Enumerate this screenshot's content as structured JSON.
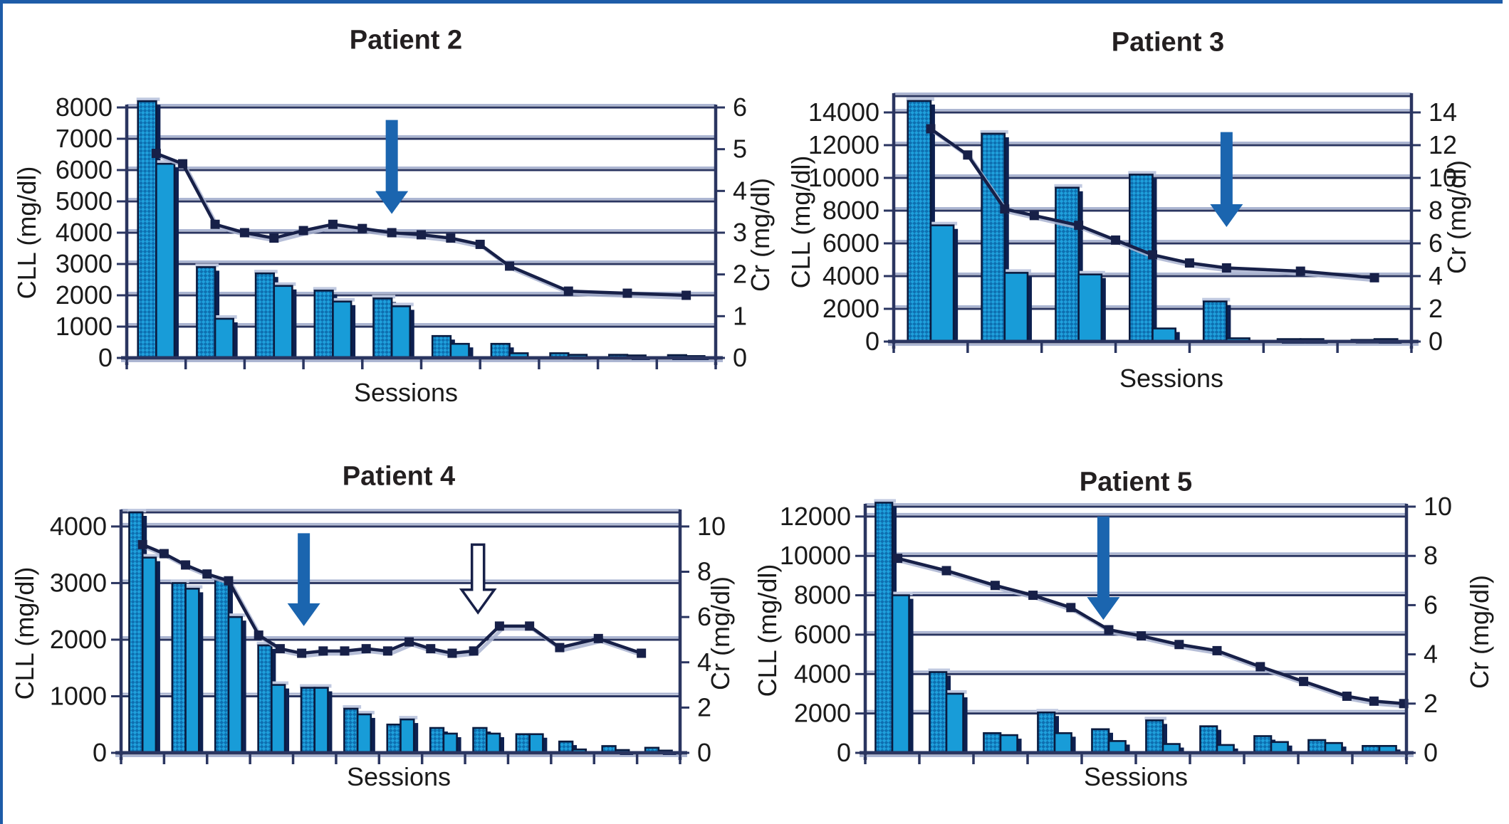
{
  "palette": {
    "bar_solid": "#189CD8",
    "bar_hatch_light": "#1FA0DC",
    "bar_hatch_dark": "#0E6FB0",
    "bar_outline": "#0A1B3F",
    "bar_shadow": "#0D2050",
    "bar_highlight": "#C0C9E0",
    "grid_navy": "#2A3560",
    "grid_light": "#ACB6D2",
    "line_ink": "#172048",
    "line_shadow": "#A9B3D0",
    "arrow_blue": "#1B65AF",
    "arrow_outline_fill": "#FFFFFF",
    "frame_blue": "#1E5CA8",
    "text": "#1A1A1A"
  },
  "chart_data": [
    {
      "type": "bar",
      "subtype": "combo-bar-line",
      "title": "Patient 2",
      "xlabel": "Sessions",
      "ylabel_left": "CLL (mg/dl)",
      "ylabel_right": "Cr (mg/dl)",
      "left_axis": {
        "ticks": [
          0,
          1000,
          2000,
          3000,
          4000,
          5000,
          6000,
          7000,
          8000
        ],
        "top_value": 8000
      },
      "right_axis": {
        "ticks": [
          0,
          1,
          2,
          3,
          4,
          5,
          6
        ]
      },
      "cll_per_cr": 1333.33,
      "bars_hatched": [
        8200,
        2900,
        2700,
        2150,
        1900,
        700,
        450,
        150,
        100,
        90
      ],
      "bars_solid": [
        6200,
        1250,
        2300,
        1800,
        1650,
        450,
        150,
        100,
        80,
        60
      ],
      "line_cr": [
        [
          1,
          4.9
        ],
        [
          1.45,
          4.65
        ],
        [
          2,
          3.2
        ],
        [
          2.5,
          3.0
        ],
        [
          3,
          2.87
        ],
        [
          3.5,
          3.05
        ],
        [
          4,
          3.2
        ],
        [
          4.5,
          3.1
        ],
        [
          5,
          3.0
        ],
        [
          5.5,
          2.95
        ],
        [
          6,
          2.87
        ],
        [
          6.5,
          2.72
        ],
        [
          7,
          2.2
        ],
        [
          8,
          1.6
        ],
        [
          9,
          1.55
        ],
        [
          10,
          1.5
        ]
      ],
      "arrows": [
        {
          "x": 5,
          "from_cr": 5.7,
          "to_cr": 3.45,
          "style": "solid"
        }
      ]
    },
    {
      "type": "bar",
      "subtype": "combo-bar-line",
      "title": "Patient 3",
      "xlabel": "Sessions",
      "ylabel_left": "CLL (mg/dl)",
      "ylabel_right": "Cr (mg/dl)",
      "left_axis": {
        "ticks": [
          0,
          2000,
          4000,
          6000,
          8000,
          10000,
          12000,
          14000
        ],
        "top_value": 15000
      },
      "right_axis": {
        "ticks": [
          0,
          2,
          4,
          6,
          8,
          10,
          12,
          14
        ]
      },
      "cll_per_cr": 1000,
      "bars_hatched": [
        14700,
        12700,
        9400,
        10200,
        2450,
        150,
        100
      ],
      "bars_solid": [
        7100,
        4200,
        4100,
        800,
        200,
        150,
        150
      ],
      "line_cr": [
        [
          1,
          13.0
        ],
        [
          1.5,
          11.4
        ],
        [
          2,
          8.1
        ],
        [
          2.4,
          7.7
        ],
        [
          3,
          7.1
        ],
        [
          3.5,
          6.2
        ],
        [
          4,
          5.3
        ],
        [
          4.5,
          4.8
        ],
        [
          5,
          4.5
        ],
        [
          6,
          4.3
        ],
        [
          7,
          3.9
        ]
      ],
      "arrows": [
        {
          "x": 5,
          "from_cr": 12.8,
          "to_cr": 7.0,
          "style": "solid"
        }
      ]
    },
    {
      "type": "bar",
      "subtype": "combo-bar-line",
      "title": "Patient 4",
      "xlabel": "Sessions",
      "ylabel_left": "CLL (mg/dl)",
      "ylabel_right": "Cr (mg/dl)",
      "left_axis": {
        "ticks": [
          0,
          1000,
          2000,
          3000,
          4000
        ],
        "top_value": 4250
      },
      "right_axis": {
        "ticks": [
          0,
          2,
          4,
          6,
          8,
          10
        ]
      },
      "cll_per_cr": 400,
      "bars_hatched": [
        4250,
        3000,
        3050,
        1900,
        1150,
        780,
        500,
        440,
        440,
        330,
        200,
        120,
        90
      ],
      "bars_solid": [
        3450,
        2900,
        2400,
        1200,
        1150,
        680,
        590,
        340,
        340,
        330,
        60,
        50,
        40
      ],
      "line_cr": [
        [
          1,
          9.2
        ],
        [
          1.5,
          8.8
        ],
        [
          2,
          8.3
        ],
        [
          2.5,
          7.9
        ],
        [
          3,
          7.6
        ],
        [
          3.7,
          5.2
        ],
        [
          4.2,
          4.6
        ],
        [
          4.7,
          4.4
        ],
        [
          5.2,
          4.5
        ],
        [
          5.7,
          4.5
        ],
        [
          6.2,
          4.6
        ],
        [
          6.7,
          4.5
        ],
        [
          7.2,
          4.9
        ],
        [
          7.7,
          4.6
        ],
        [
          8.2,
          4.4
        ],
        [
          8.7,
          4.5
        ],
        [
          9.3,
          5.6
        ],
        [
          10,
          5.6
        ],
        [
          10.7,
          4.65
        ],
        [
          11.6,
          5.05
        ],
        [
          12.6,
          4.4
        ]
      ],
      "arrows": [
        {
          "x": 4.75,
          "from_cr": 9.7,
          "to_cr": 5.6,
          "style": "solid"
        },
        {
          "x": 8.8,
          "from_cr": 9.2,
          "to_cr": 6.2,
          "style": "outline"
        }
      ]
    },
    {
      "type": "bar",
      "subtype": "combo-bar-line",
      "title": "Patient 5",
      "xlabel": "Sessions",
      "ylabel_left": "CLL (mg/dl)",
      "ylabel_right": "Cr (mg/dl)",
      "left_axis": {
        "ticks": [
          0,
          2000,
          4000,
          6000,
          8000,
          10000,
          12000
        ],
        "top_value": 12500
      },
      "right_axis": {
        "ticks": [
          0,
          2,
          4,
          6,
          8,
          10
        ]
      },
      "cll_per_cr": 1250,
      "bars_hatched": [
        12700,
        4100,
        1000,
        2050,
        1200,
        1650,
        1350,
        850,
        650,
        350
      ],
      "bars_solid": [
        8000,
        3000,
        900,
        1000,
        600,
        450,
        400,
        550,
        500,
        350
      ],
      "line_cr": [
        [
          1.1,
          7.9
        ],
        [
          2,
          7.4
        ],
        [
          2.9,
          6.8
        ],
        [
          3.6,
          6.4
        ],
        [
          4.3,
          5.9
        ],
        [
          5,
          5.0
        ],
        [
          5.6,
          4.75
        ],
        [
          6.3,
          4.4
        ],
        [
          7,
          4.15
        ],
        [
          7.8,
          3.5
        ],
        [
          8.6,
          2.9
        ],
        [
          9.4,
          2.3
        ],
        [
          9.9,
          2.1
        ],
        [
          10.45,
          2.0
        ]
      ],
      "arrows": [
        {
          "x": 4.9,
          "from_cr": 9.6,
          "to_cr": 5.4,
          "style": "solid"
        }
      ]
    }
  ]
}
